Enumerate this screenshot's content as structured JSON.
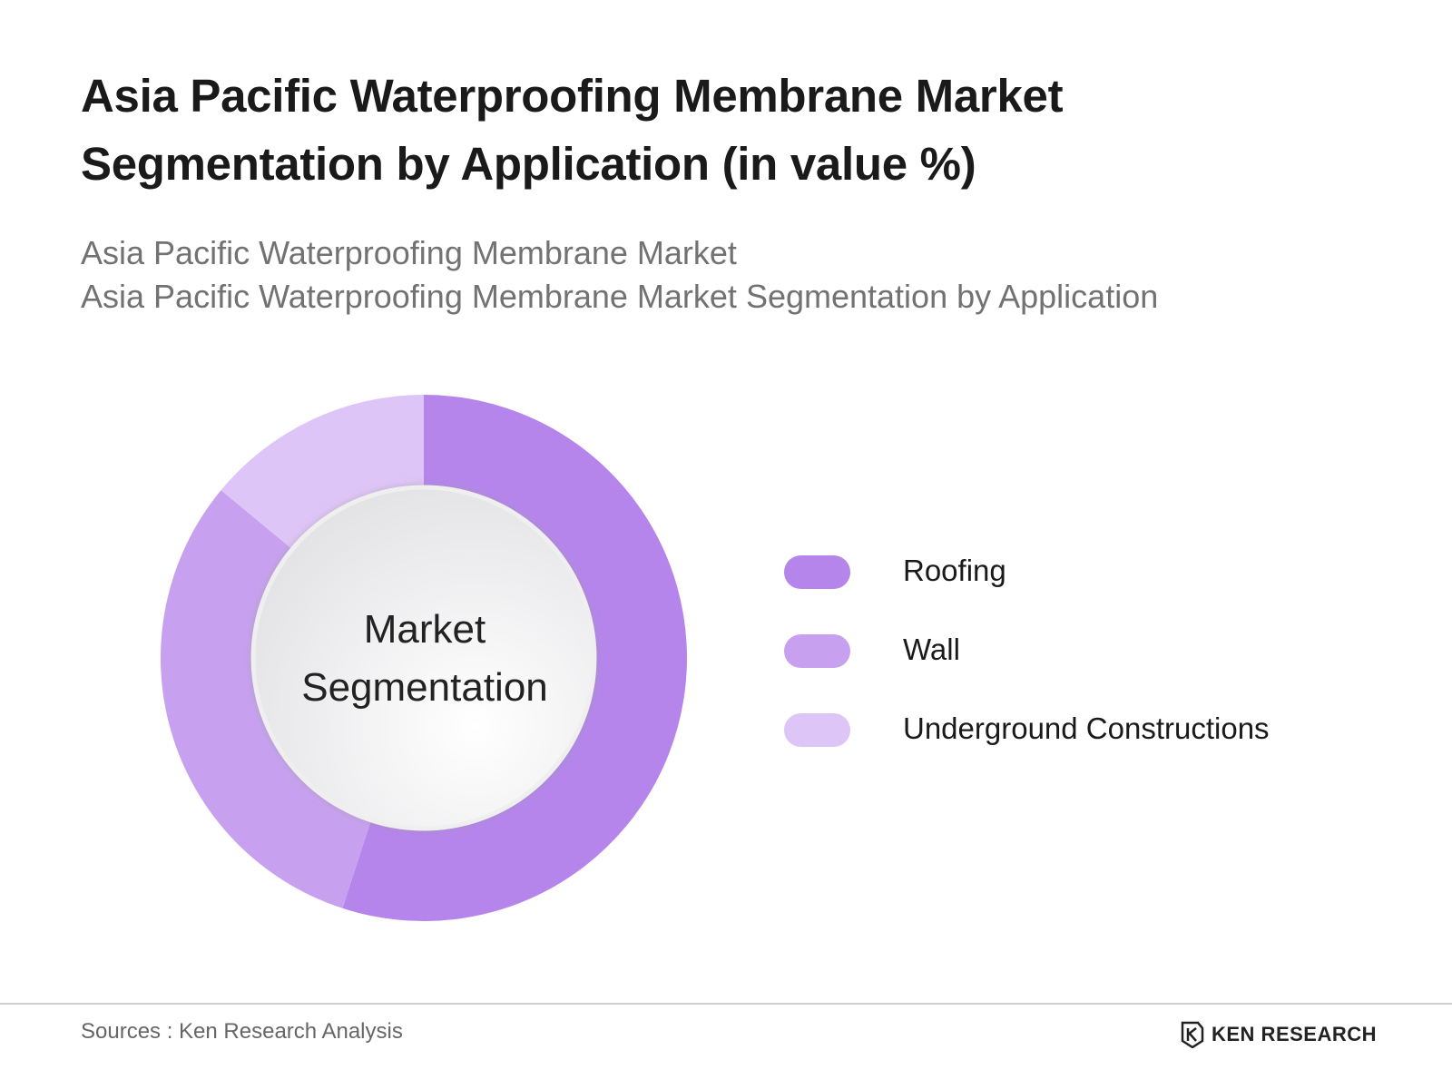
{
  "header": {
    "title_line1": "Asia Pacific Waterproofing Membrane Market",
    "title_line2": "Segmentation by Application (in value %)",
    "subtitle_line1": "Asia Pacific Waterproofing Membrane Market",
    "subtitle_line2": "Asia Pacific Waterproofing Membrane Market Segmentation by Application"
  },
  "chart_data": {
    "type": "pie",
    "variant": "donut",
    "center_label_line1": "Market",
    "center_label_line2": "Segmentation",
    "categories": [
      "Roofing",
      "Wall",
      "Underground Constructions"
    ],
    "values": [
      55,
      31,
      14
    ],
    "colors": [
      "#b585ec",
      "#c7a1ef",
      "#dec5f7"
    ],
    "start_angle_deg": 0,
    "direction": "clockwise",
    "legend_position": "right"
  },
  "footer": {
    "source": "Sources : Ken Research Analysis",
    "brand": "KEN RESEARCH",
    "brand_logo_icon": "ken-research-logo-icon"
  }
}
